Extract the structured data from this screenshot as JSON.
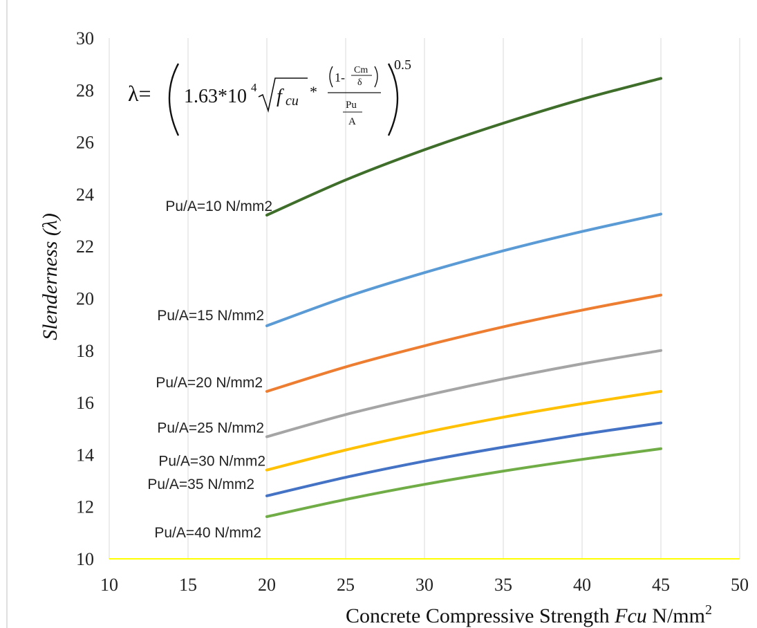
{
  "chart_data": {
    "type": "line",
    "xlabel": {
      "prefix": "Concrete Compressive Strength ",
      "var": "Fcu",
      "unit": " N/mm",
      "sup": "2"
    },
    "ylabel": {
      "text": "Slenderness (",
      "sym": "λ",
      "close": ")"
    },
    "xlim": [
      10,
      50
    ],
    "ylim": [
      10,
      30
    ],
    "xticks": [
      "10",
      "15",
      "20",
      "25",
      "30",
      "35",
      "40",
      "45",
      "50"
    ],
    "yticks": [
      "10",
      "12",
      "14",
      "16",
      "18",
      "20",
      "22",
      "24",
      "26",
      "28",
      "30"
    ],
    "grid": "vertical",
    "legend": "none",
    "formula": {
      "lhs": "λ=",
      "coef": "1.63*10",
      "coef_exp": "4",
      "sqrt_var": "f",
      "sqrt_sub": "cu",
      "star": "*",
      "one_minus": "1-",
      "cm": "Cm",
      "delta": "δ",
      "pu": "Pu",
      "a": "A",
      "exp": "0.5"
    },
    "series": [
      {
        "name": "Pu/A=10  N/mm2",
        "color": "#3f6e2a",
        "x": [
          20,
          25,
          30,
          35,
          40,
          45
        ],
        "y": [
          23.2,
          24.55,
          25.71,
          26.73,
          27.65,
          28.45
        ]
      },
      {
        "name": "Pu/A=15  N/mm2",
        "color": "#5b9bd5",
        "x": [
          20,
          25,
          30,
          35,
          40,
          45
        ],
        "y": [
          18.95,
          20.05,
          20.99,
          21.83,
          22.57,
          23.24
        ]
      },
      {
        "name": "Pu/A=20  N/mm2",
        "color": "#ed7d31",
        "x": [
          20,
          25,
          30,
          35,
          40,
          45
        ],
        "y": [
          16.43,
          17.37,
          18.18,
          18.91,
          19.55,
          20.13
        ]
      },
      {
        "name": "Pu/A=25  N/mm2",
        "color": "#a5a5a5",
        "x": [
          20,
          25,
          30,
          35,
          40,
          45
        ],
        "y": [
          14.69,
          15.54,
          16.26,
          16.91,
          17.49,
          18.0
        ]
      },
      {
        "name": "Pu/A=30  N/mm2",
        "color": "#ffc000",
        "x": [
          20,
          25,
          30,
          35,
          40,
          45
        ],
        "y": [
          13.41,
          14.18,
          14.85,
          15.44,
          15.96,
          16.43
        ]
      },
      {
        "name": "Pu/A=35  N/mm2",
        "color": "#4472c4",
        "x": [
          20,
          25,
          30,
          35,
          40,
          45
        ],
        "y": [
          12.42,
          13.13,
          13.75,
          14.29,
          14.78,
          15.22
        ]
      },
      {
        "name": "Pu/A=40  N/mm2",
        "color": "#70ad47",
        "x": [
          20,
          25,
          30,
          35,
          40,
          45
        ],
        "y": [
          11.62,
          12.28,
          12.86,
          13.37,
          13.82,
          14.23
        ]
      }
    ],
    "colors": {
      "axis_line": "#ffff00",
      "grid": "#d9d9d9",
      "frame": "#bfbfbf"
    }
  }
}
